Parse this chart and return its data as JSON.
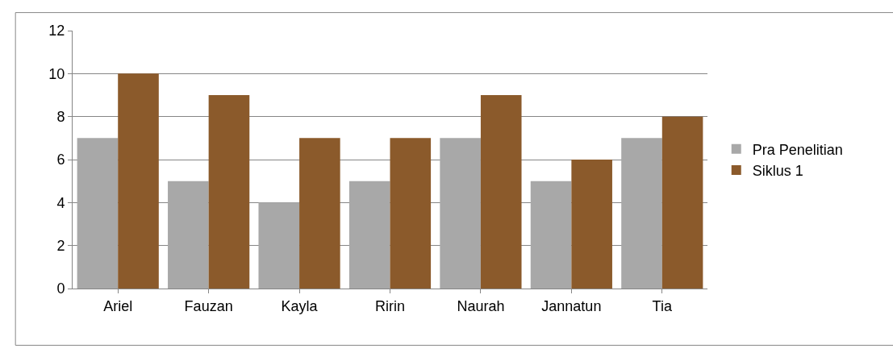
{
  "chart_data": {
    "type": "bar",
    "categories": [
      "Ariel",
      "Fauzan",
      "Kayla",
      "Ririn",
      "Naurah",
      "Jannatun",
      "Tia"
    ],
    "series": [
      {
        "name": "Pra Penelitian",
        "color": "#a8a8a8",
        "values": [
          7,
          5,
          4,
          5,
          7,
          5,
          7
        ]
      },
      {
        "name": "Siklus 1",
        "color": "#8b5a2b",
        "values": [
          10,
          9,
          7,
          7,
          9,
          6,
          8
        ]
      }
    ],
    "ylim": [
      0,
      12
    ],
    "yticks": [
      0,
      2,
      4,
      6,
      8,
      10,
      12
    ],
    "grid": "y",
    "legend": "right"
  }
}
